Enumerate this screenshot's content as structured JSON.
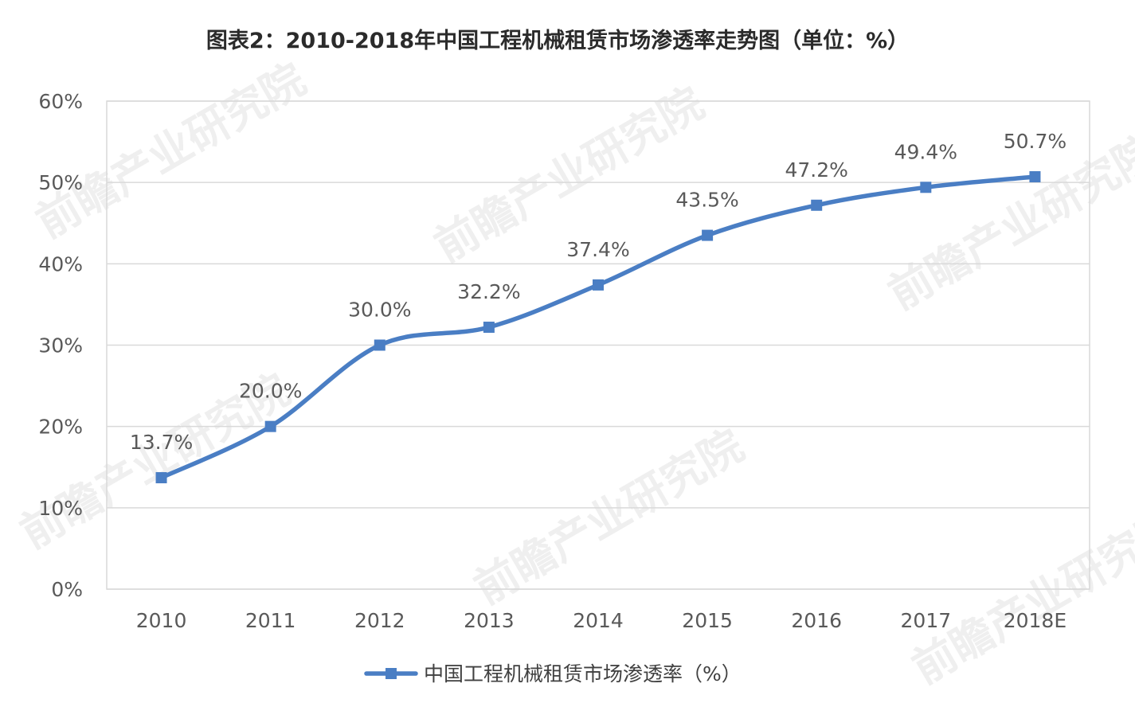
{
  "chart_data": {
    "type": "line",
    "title": "图表2：2010-2018年中国工程机械租赁市场渗透率走势图（单位：%）",
    "xlabel": "",
    "ylabel": "",
    "categories": [
      "2010",
      "2011",
      "2012",
      "2013",
      "2014",
      "2015",
      "2016",
      "2017",
      "2018E"
    ],
    "series": [
      {
        "name": "中国工程机械租赁市场渗透率（%）",
        "values": [
          13.7,
          20.0,
          30.0,
          32.2,
          37.4,
          43.5,
          47.2,
          49.4,
          50.7
        ],
        "labels": [
          "13.7%",
          "20.0%",
          "30.0%",
          "32.2%",
          "37.4%",
          "43.5%",
          "47.2%",
          "49.4%",
          "50.7%"
        ],
        "color": "#4a7ec4",
        "marker": "square",
        "smooth": true
      }
    ],
    "ylim": [
      0,
      60
    ],
    "yticks": [
      0,
      10,
      20,
      30,
      40,
      50,
      60
    ],
    "ytick_labels": [
      "0%",
      "10%",
      "20%",
      "30%",
      "40%",
      "50%",
      "60%"
    ],
    "grid": true,
    "legend_position": "bottom-center"
  },
  "watermark": {
    "text": "前瞻产业研究院"
  }
}
